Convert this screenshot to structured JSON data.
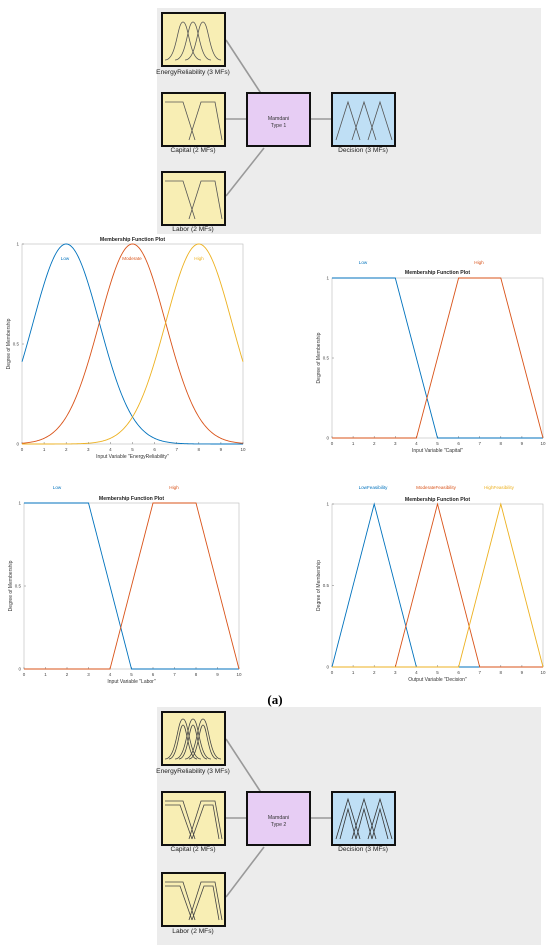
{
  "fis_a": {
    "inputs": [
      {
        "label": "EnergyReliability (3 MFs)"
      },
      {
        "label": "Capital (2 MFs)"
      },
      {
        "label": "Labor (2 MFs)"
      }
    ],
    "system": {
      "line1": "Mamdani",
      "line2": "Type 1"
    },
    "output": {
      "label": "Decision (3 MFs)"
    }
  },
  "caption_a": "(a)",
  "fis_b": {
    "inputs": [
      {
        "label": "EnergyReliability (3 MFs)"
      },
      {
        "label": "Capital (2 MFs)"
      },
      {
        "label": "Labor (2 MFs)"
      }
    ],
    "system": {
      "line1": "Mamdani",
      "line2": "Type 2"
    },
    "output": {
      "label": "Decision (3 MFs)"
    }
  },
  "colors": {
    "blue": "#0072bd",
    "orange": "#d95319",
    "yellow": "#edb120",
    "panel": "#ececec",
    "input_fill": "#f8eeb4",
    "system_fill": "#e7cdf4",
    "output_fill": "#bfdff5"
  },
  "chart_data": [
    {
      "type": "line",
      "title": "Membership Function Plot",
      "xlabel": "Input Variable \"EnergyReliability\"",
      "ylabel": "Degree of Membership",
      "xlim": [
        0,
        10
      ],
      "ylim": [
        0,
        1
      ],
      "xticks": [
        "0",
        "1",
        "2",
        "3",
        "4",
        "5",
        "6",
        "7",
        "8",
        "9",
        "10"
      ],
      "yticks": [
        "0",
        "0.5",
        "1"
      ],
      "series": [
        {
          "name": "Low",
          "shape": "gaussian",
          "center": 2,
          "sigma": 1.5,
          "color": "#0072bd"
        },
        {
          "name": "Moderate",
          "shape": "gaussian",
          "center": 5,
          "sigma": 1.5,
          "color": "#d95319"
        },
        {
          "name": "High",
          "shape": "gaussian",
          "center": 8,
          "sigma": 1.5,
          "color": "#edb120"
        }
      ]
    },
    {
      "type": "line",
      "title": "Membership Function Plot",
      "xlabel": "Input Variable \"Capital\"",
      "ylabel": "Degree of Membership",
      "xlim": [
        0,
        10
      ],
      "ylim": [
        0,
        1
      ],
      "xticks": [
        "0",
        "1",
        "2",
        "3",
        "4",
        "5",
        "6",
        "7",
        "8",
        "9",
        "10"
      ],
      "yticks": [
        "0",
        "0.5",
        "1"
      ],
      "series": [
        {
          "name": "Low",
          "shape": "trapezoid",
          "x": [
            0,
            0,
            3,
            5
          ],
          "color": "#0072bd"
        },
        {
          "name": "High",
          "shape": "trapezoid",
          "x": [
            4,
            6,
            8,
            10
          ],
          "color": "#d95319"
        }
      ]
    },
    {
      "type": "line",
      "title": "Membership Function Plot",
      "xlabel": "Input Variable \"Labor\"",
      "ylabel": "Degree of Membership",
      "xlim": [
        0,
        10
      ],
      "ylim": [
        0,
        1
      ],
      "xticks": [
        "0",
        "1",
        "2",
        "3",
        "4",
        "5",
        "6",
        "7",
        "8",
        "9",
        "10"
      ],
      "yticks": [
        "0",
        "0.5",
        "1"
      ],
      "series": [
        {
          "name": "Low",
          "shape": "trapezoid",
          "x": [
            0,
            0,
            3,
            5
          ],
          "color": "#0072bd"
        },
        {
          "name": "High",
          "shape": "trapezoid",
          "x": [
            4,
            6,
            8,
            10
          ],
          "color": "#d95319"
        }
      ]
    },
    {
      "type": "line",
      "title": "Membership Function Plot",
      "xlabel": "Output Variable \"Decision\"",
      "ylabel": "Degree of Membership",
      "xlim": [
        0,
        10
      ],
      "ylim": [
        0,
        1
      ],
      "xticks": [
        "0",
        "1",
        "2",
        "3",
        "4",
        "5",
        "6",
        "7",
        "8",
        "9",
        "10"
      ],
      "yticks": [
        "0",
        "0.5",
        "1"
      ],
      "series": [
        {
          "name": "LowFeasibility",
          "shape": "triangle",
          "x": [
            0,
            2,
            4
          ],
          "color": "#0072bd"
        },
        {
          "name": "ModerateFeasibility",
          "shape": "triangle",
          "x": [
            3,
            5,
            7
          ],
          "color": "#d95319"
        },
        {
          "name": "HighFeasibility",
          "shape": "triangle",
          "x": [
            6,
            8,
            10
          ],
          "color": "#edb120"
        }
      ]
    }
  ]
}
